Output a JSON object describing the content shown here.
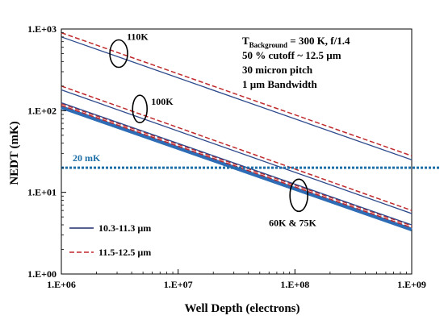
{
  "chart_data": {
    "type": "line",
    "x_scale": "log",
    "y_scale": "log",
    "xlabel": "Well Depth (electrons)",
    "ylabel": "NEDT (mK)",
    "xlim": [
      1000000,
      1000000000
    ],
    "ylim": [
      1,
      1000
    ],
    "x_ticks": [
      1000000,
      10000000,
      100000000,
      1000000000
    ],
    "x_tick_labels": [
      "1.E+06",
      "1.E+07",
      "1.E+08",
      "1.E+09"
    ],
    "y_ticks": [
      1,
      10,
      100,
      1000
    ],
    "y_tick_labels": [
      "1.E+00",
      "1.E+01",
      "1.E+02",
      "1.E+03"
    ],
    "grid": false,
    "legend_position": "bottom-left",
    "legend": [
      {
        "label": "10.3-11.3 µm",
        "color": "#1f2d6e",
        "dash": "solid"
      },
      {
        "label": "11.5-12.5 µm",
        "color": "#c0292b",
        "dash": "dashed"
      }
    ],
    "info_lines": [
      {
        "main": "T",
        "sub": "Background",
        "rest": " = 300 K, f/1.4"
      },
      {
        "main": "50 % cutoff ~ 12.5 µm",
        "sub": "",
        "rest": ""
      },
      {
        "main": "30 micron pitch",
        "sub": "",
        "rest": ""
      },
      {
        "main": "1 µm Bandwidth",
        "sub": "",
        "rest": ""
      }
    ],
    "reference_line": {
      "y": 20,
      "label": "20 mK",
      "color": "#1e6fa8"
    },
    "series": [
      {
        "group": "110K",
        "band": "10.3-11.3 µm",
        "color": "#2e4a8c",
        "dash": "solid",
        "width": 1.3,
        "x": [
          1000000,
          1000000000
        ],
        "y": [
          800,
          25
        ]
      },
      {
        "group": "110K",
        "band": "11.5-12.5 µm",
        "color": "#c0292b",
        "dash": "dashed",
        "width": 1.5,
        "x": [
          1000000,
          1000000000
        ],
        "y": [
          900,
          28
        ]
      },
      {
        "group": "100K",
        "band": "10.3-11.3 µm",
        "color": "#2e4a8c",
        "dash": "solid",
        "width": 1.3,
        "x": [
          1000000,
          1000000000
        ],
        "y": [
          180,
          5.5
        ]
      },
      {
        "group": "100K",
        "band": "11.5-12.5 µm",
        "color": "#c0292b",
        "dash": "dashed",
        "width": 1.5,
        "x": [
          1000000,
          1000000000
        ],
        "y": [
          200,
          6
        ]
      },
      {
        "group": "75K",
        "band": "10.3-11.3 µm",
        "color": "#2e4a8c",
        "dash": "solid",
        "width": 1.3,
        "x": [
          1000000,
          1000000000
        ],
        "y": [
          125,
          4
        ]
      },
      {
        "group": "75K",
        "band": "11.5-12.5 µm",
        "color": "#c0292b",
        "dash": "dashed",
        "width": 1.5,
        "x": [
          1000000,
          1000000000
        ],
        "y": [
          122,
          3.9
        ]
      },
      {
        "group": "60K",
        "band": "10.3-11.3 µm",
        "color": "#2e6db5",
        "dash": "solid",
        "width": 4.5,
        "x": [
          1000000,
          1000000000
        ],
        "y": [
          110,
          3.5
        ]
      },
      {
        "group": "60K",
        "band": "11.5-12.5 µm",
        "color": "#c0292b",
        "dash": "dashed",
        "width": 1.5,
        "x": [
          1000000,
          1000000000
        ],
        "y": [
          116,
          3.7
        ]
      }
    ],
    "annotations": [
      {
        "text": "110K",
        "x": 3100000,
        "y": 500
      },
      {
        "text": "100K",
        "x": 4700000,
        "y": 105
      },
      {
        "text": "60K & 75K",
        "x": 108000000,
        "y": 9.2
      }
    ]
  }
}
